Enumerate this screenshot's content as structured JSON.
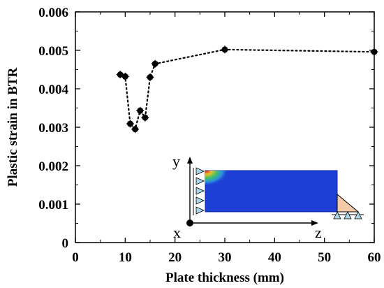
{
  "chart_data": {
    "type": "scatter",
    "title": "",
    "xlabel": "Plate thickness (mm)",
    "ylabel": "Plastic strain in BTR",
    "xlim": [
      0,
      60
    ],
    "ylim": [
      0,
      0.006
    ],
    "xticks": [
      "0",
      "10",
      "20",
      "30",
      "40",
      "50",
      "60"
    ],
    "yticks": [
      "0",
      "0.001",
      "0.002",
      "0.003",
      "0.004",
      "0.005",
      "0.006"
    ],
    "series": [
      {
        "style": "dotted-line-with-markers",
        "color": "#000000",
        "x": [
          9,
          10,
          11,
          12,
          13,
          14,
          15,
          16,
          30,
          60
        ],
        "y": [
          0.00437,
          0.00432,
          0.00309,
          0.00295,
          0.00343,
          0.00325,
          0.0043,
          0.00465,
          0.00502,
          0.00496
        ]
      }
    ],
    "grid": false,
    "legend": "none",
    "inset": {
      "labels": {
        "y": "y",
        "x": "x",
        "z": "z"
      },
      "colors": {
        "plate": "#1e3fd6",
        "hot_core": "#d21b1b",
        "warm": "#e9c42a",
        "mid": "#3fbf6a",
        "support_fill": "#f4c9a6",
        "roller": "#a9d6e8"
      }
    }
  }
}
